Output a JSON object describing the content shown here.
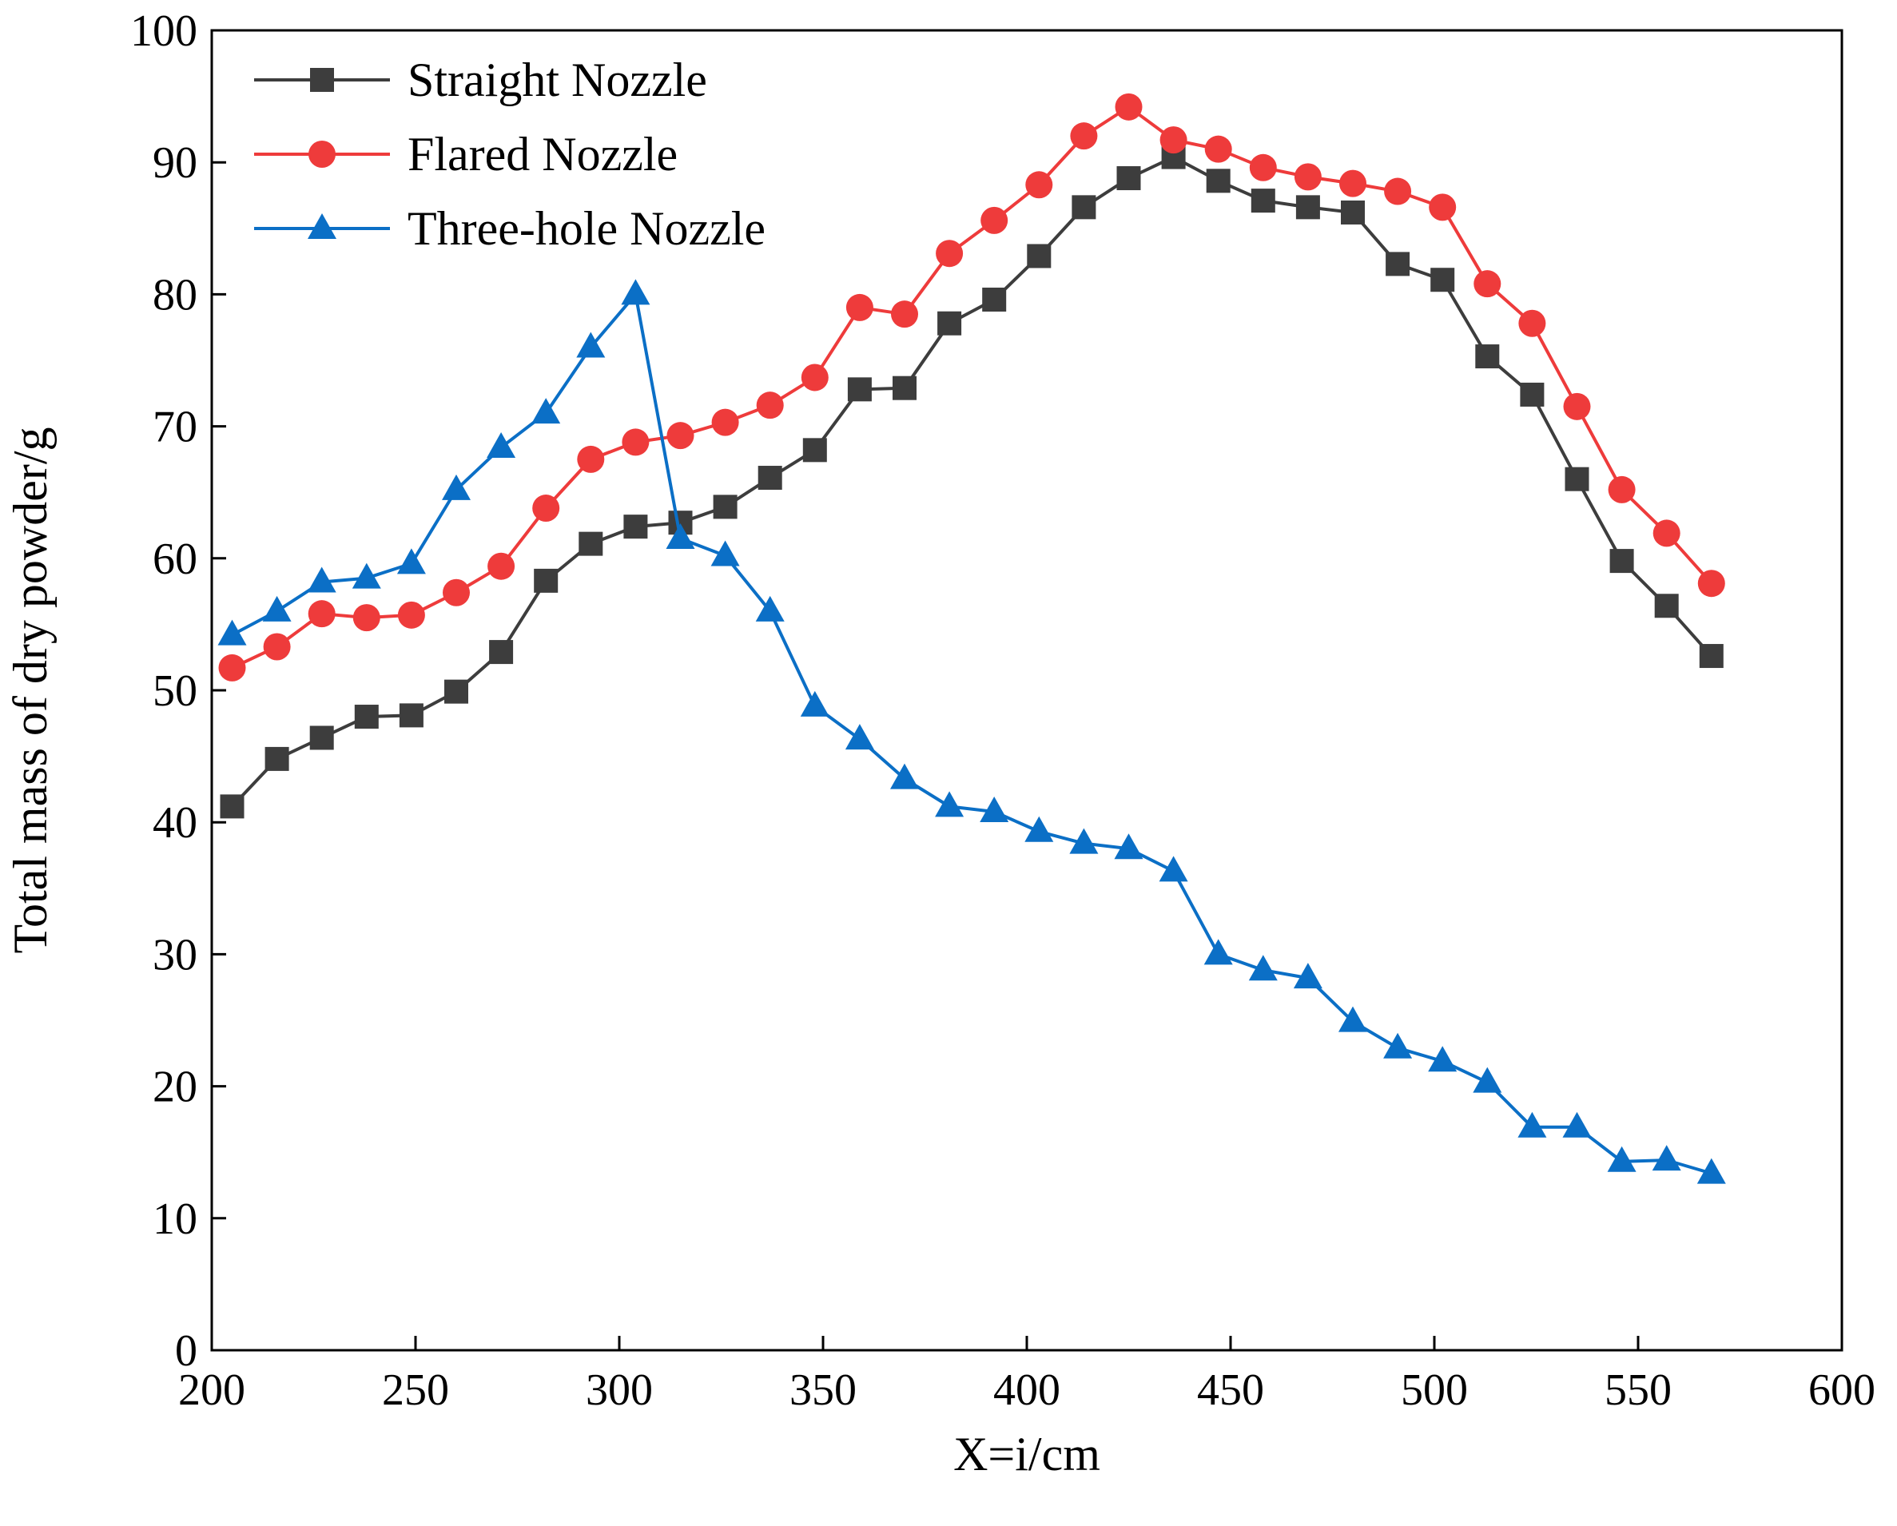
{
  "chart_data": {
    "type": "line",
    "title": "",
    "xlabel": "X=i/cm",
    "ylabel": "Total mass of dry powder/g",
    "xlim": [
      200,
      600
    ],
    "ylim": [
      0,
      100
    ],
    "xticks": [
      200,
      250,
      300,
      350,
      400,
      450,
      500,
      550,
      600
    ],
    "yticks": [
      0,
      10,
      20,
      30,
      40,
      50,
      60,
      70,
      80,
      90,
      100
    ],
    "grid": false,
    "legend_position": "top-left",
    "x": [
      205,
      216,
      227,
      238,
      249,
      260,
      271,
      282,
      293,
      304,
      315,
      326,
      337,
      348,
      359,
      370,
      381,
      392,
      403,
      414,
      425,
      436,
      447,
      458,
      469,
      480,
      491,
      502,
      513,
      524,
      535,
      546,
      557,
      568
    ],
    "series": [
      {
        "name": "Straight Nozzle",
        "color": "#3d3d3d",
        "marker": "square",
        "values": [
          41.2,
          44.8,
          46.4,
          48.0,
          48.1,
          49.9,
          52.9,
          58.3,
          61.1,
          62.4,
          62.7,
          63.9,
          66.1,
          68.2,
          72.8,
          72.9,
          77.8,
          79.6,
          82.9,
          86.6,
          88.8,
          90.4,
          88.6,
          87.1,
          86.6,
          86.2,
          82.3,
          81.1,
          75.3,
          72.4,
          66.0,
          59.8,
          56.4,
          52.6
        ]
      },
      {
        "name": "Flared Nozzle",
        "color": "#ee3b3b",
        "marker": "circle",
        "values": [
          51.7,
          53.3,
          55.8,
          55.5,
          55.7,
          57.4,
          59.4,
          63.8,
          67.5,
          68.8,
          69.3,
          70.3,
          71.6,
          73.7,
          79.0,
          78.5,
          83.1,
          85.6,
          88.3,
          92.0,
          94.2,
          91.7,
          91.0,
          89.6,
          88.9,
          88.4,
          87.8,
          86.6,
          80.8,
          77.8,
          71.5,
          65.2,
          61.9,
          58.1
        ]
      },
      {
        "name": "Three-hole Nozzle",
        "color": "#0b6fc6",
        "marker": "triangle",
        "values": [
          54.2,
          56.0,
          58.2,
          58.5,
          59.6,
          65.2,
          68.4,
          71.0,
          76.0,
          80.0,
          61.5,
          60.2,
          56.0,
          48.8,
          46.3,
          43.3,
          41.2,
          40.8,
          39.3,
          38.4,
          38.0,
          36.3,
          30.0,
          28.8,
          28.2,
          24.9,
          22.9,
          21.9,
          20.3,
          16.9,
          16.9,
          14.3,
          14.4,
          13.4
        ]
      }
    ]
  }
}
